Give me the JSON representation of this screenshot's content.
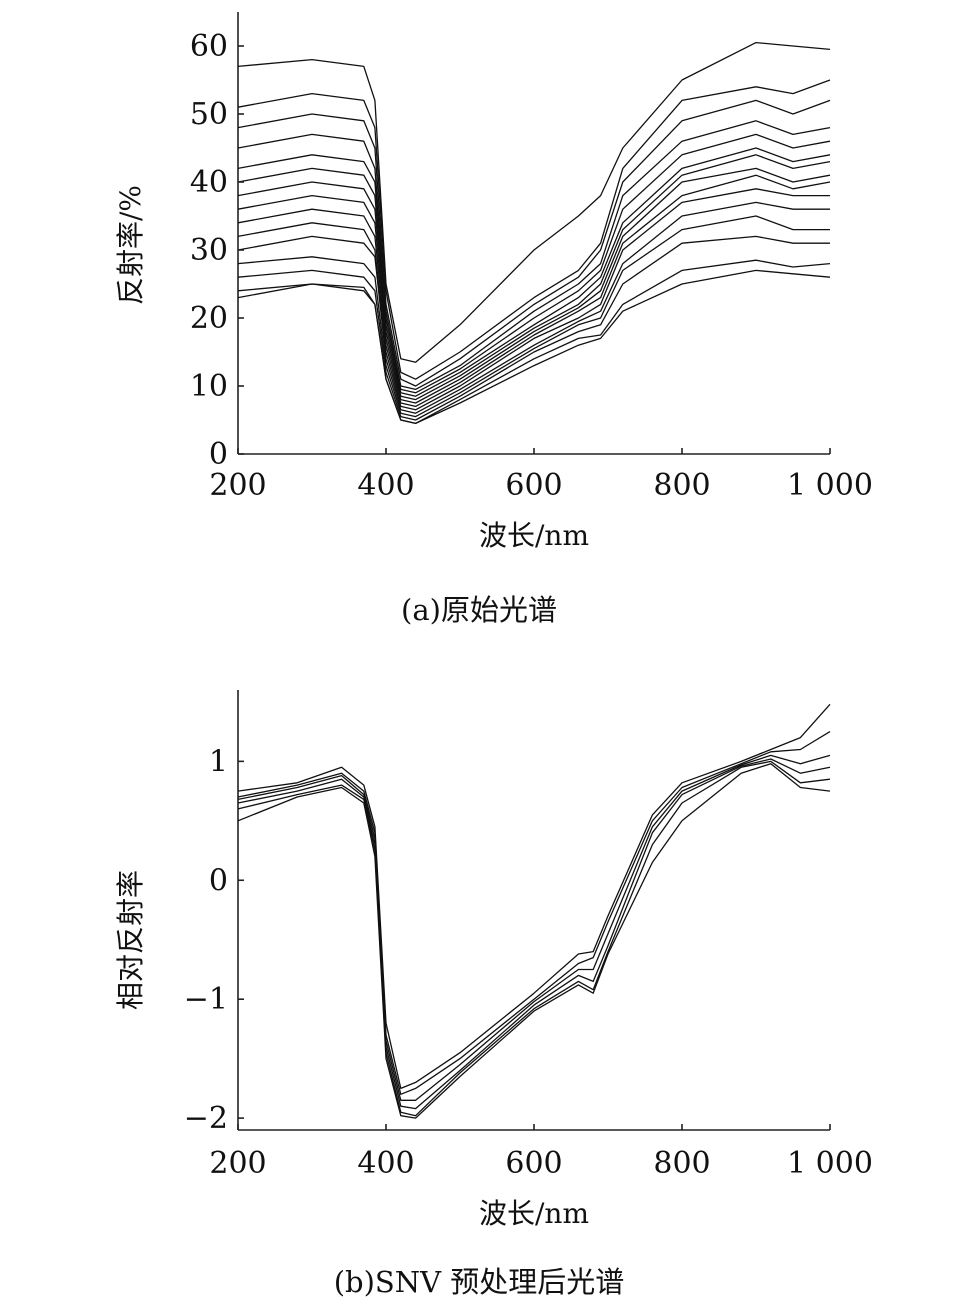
{
  "chart_data": [
    {
      "type": "line",
      "caption": "(a)原始光谱",
      "xlabel": "波长/nm",
      "ylabel": "反射率/%",
      "xlim": [
        200,
        1000
      ],
      "ylim": [
        0,
        65
      ],
      "x_ticks": [
        200,
        400,
        600,
        800,
        1000
      ],
      "x_tick_labels": [
        "200",
        "400",
        "600",
        "800",
        "1 000"
      ],
      "y_ticks": [
        0,
        10,
        20,
        30,
        40,
        50,
        60
      ],
      "y_tick_labels": [
        "0",
        "10",
        "20",
        "30",
        "40",
        "50",
        "60"
      ],
      "grid": false,
      "legend": "none",
      "line_color": "#111111",
      "x": [
        200,
        300,
        370,
        385,
        400,
        420,
        440,
        500,
        600,
        660,
        690,
        720,
        800,
        900,
        950,
        1000
      ],
      "series": [
        {
          "values": [
            57,
            58,
            57,
            52,
            25,
            14,
            13.5,
            19,
            30,
            35,
            38,
            45,
            55,
            60.5,
            60,
            59.5
          ]
        },
        {
          "values": [
            51,
            53,
            52,
            48,
            24,
            12,
            11,
            15,
            23,
            27,
            31,
            42,
            52,
            54,
            53,
            55
          ]
        },
        {
          "values": [
            48,
            50,
            49,
            45,
            22,
            11,
            10,
            14,
            22,
            26,
            30,
            40,
            49,
            52,
            50,
            52
          ]
        },
        {
          "values": [
            45,
            47,
            46,
            42,
            21,
            10,
            9.5,
            13,
            21,
            25,
            28,
            38,
            46,
            49,
            47,
            48
          ]
        },
        {
          "values": [
            42,
            44,
            43,
            40,
            20,
            9.5,
            9,
            12.5,
            20,
            24,
            27,
            36,
            44,
            47,
            45,
            46
          ]
        },
        {
          "values": [
            40,
            42,
            41,
            38,
            19,
            9,
            8.5,
            12,
            19,
            23,
            26,
            34,
            42,
            45,
            43,
            44
          ]
        },
        {
          "values": [
            38,
            40,
            39,
            36,
            18,
            8.5,
            8,
            11.5,
            18.5,
            22,
            25,
            33,
            41,
            44,
            42,
            43
          ]
        },
        {
          "values": [
            36,
            38,
            37,
            34,
            17,
            8,
            7.5,
            11,
            18,
            21.5,
            24,
            32,
            40,
            42,
            40,
            41
          ]
        },
        {
          "values": [
            34,
            36,
            35,
            32,
            16,
            7.5,
            7,
            10.5,
            17.5,
            21,
            23,
            31,
            38,
            41,
            39,
            40
          ]
        },
        {
          "values": [
            32,
            34,
            33,
            30,
            15,
            7,
            6.5,
            10,
            17,
            20,
            22,
            30,
            37,
            39,
            38,
            38
          ]
        },
        {
          "values": [
            30,
            32,
            31,
            29,
            14,
            6.5,
            6,
            9.5,
            16,
            19.5,
            21,
            28,
            35,
            37,
            36,
            36
          ]
        },
        {
          "values": [
            28,
            29,
            28,
            26,
            13,
            6,
            5.5,
            9,
            15.5,
            19,
            20,
            27,
            33,
            35,
            33,
            33
          ]
        },
        {
          "values": [
            26,
            27,
            26,
            24,
            12,
            5.5,
            5,
            8.5,
            15,
            18,
            19,
            25,
            31,
            32,
            31,
            31
          ]
        },
        {
          "values": [
            24,
            25,
            24,
            22,
            11,
            5,
            4.5,
            8,
            14,
            17,
            17.5,
            22,
            27,
            28.5,
            27.5,
            28
          ]
        },
        {
          "values": [
            23,
            25,
            24.5,
            22,
            11,
            5,
            4.5,
            7.5,
            13,
            16,
            17,
            21,
            25,
            27,
            26.5,
            26
          ]
        }
      ]
    },
    {
      "type": "line",
      "caption": "(b)SNV 预处理后光谱",
      "xlabel": "波长/nm",
      "ylabel": "相对反射率",
      "xlim": [
        200,
        1000
      ],
      "ylim": [
        -2.1,
        1.6
      ],
      "x_ticks": [
        200,
        400,
        600,
        800,
        1000
      ],
      "x_tick_labels": [
        "200",
        "400",
        "600",
        "800",
        "1 000"
      ],
      "y_ticks": [
        -2,
        -1,
        0,
        1
      ],
      "y_tick_labels": [
        "−2",
        "−1",
        "0",
        "1"
      ],
      "grid": false,
      "legend": "none",
      "line_color": "#111111",
      "x": [
        200,
        280,
        340,
        370,
        385,
        400,
        420,
        440,
        500,
        600,
        660,
        680,
        700,
        760,
        800,
        880,
        920,
        960,
        1000
      ],
      "series": [
        {
          "values": [
            0.75,
            0.82,
            0.95,
            0.8,
            0.45,
            -1.2,
            -1.75,
            -1.7,
            -1.45,
            -0.95,
            -0.62,
            -0.6,
            -0.3,
            0.55,
            0.82,
            1.0,
            1.1,
            1.2,
            1.48
          ]
        },
        {
          "values": [
            0.7,
            0.8,
            0.9,
            0.75,
            0.4,
            -1.3,
            -1.8,
            -1.75,
            -1.5,
            -1.0,
            -0.7,
            -0.65,
            -0.35,
            0.5,
            0.78,
            0.98,
            1.08,
            1.1,
            1.25
          ]
        },
        {
          "values": [
            0.68,
            0.78,
            0.88,
            0.72,
            0.35,
            -1.35,
            -1.85,
            -1.85,
            -1.55,
            -1.02,
            -0.75,
            -0.75,
            -0.45,
            0.45,
            0.75,
            0.97,
            1.05,
            0.98,
            1.05
          ]
        },
        {
          "values": [
            0.65,
            0.75,
            0.85,
            0.7,
            0.3,
            -1.4,
            -1.9,
            -1.92,
            -1.6,
            -1.05,
            -0.8,
            -0.85,
            -0.55,
            0.4,
            0.72,
            0.96,
            1.02,
            0.9,
            0.95
          ]
        },
        {
          "values": [
            0.6,
            0.72,
            0.8,
            0.68,
            0.25,
            -1.45,
            -1.95,
            -1.98,
            -1.62,
            -1.08,
            -0.85,
            -0.92,
            -0.6,
            0.3,
            0.65,
            0.95,
            1.0,
            0.82,
            0.85
          ]
        },
        {
          "values": [
            0.5,
            0.7,
            0.78,
            0.65,
            0.2,
            -1.5,
            -1.98,
            -2.0,
            -1.65,
            -1.1,
            -0.88,
            -0.95,
            -0.62,
            0.15,
            0.5,
            0.9,
            0.98,
            0.78,
            0.75
          ]
        }
      ]
    }
  ]
}
